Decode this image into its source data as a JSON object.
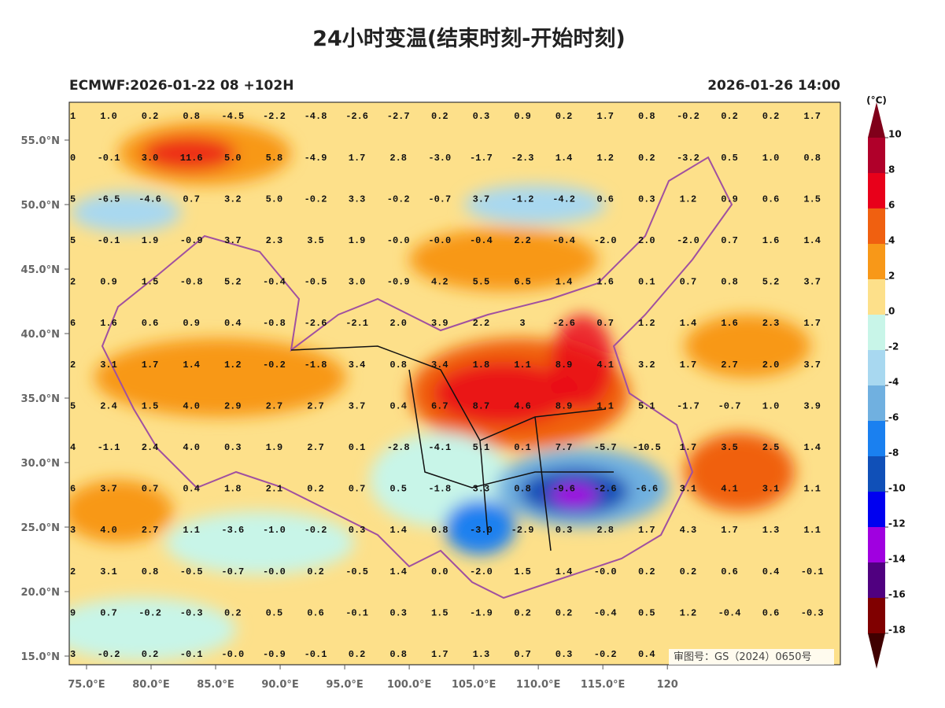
{
  "map": {
    "title": "24小时变温(结束时刻-开始时刻)",
    "source": "ECMWF:2026-01-22 08 +102H",
    "valid_time": "2026-01-26 14:00",
    "unit_label": "(°C)",
    "review_number": "审图号：GS（2024）0650号",
    "xlim": [
      73.66,
      133.4
    ],
    "ylim": [
      14.33,
      57.93
    ],
    "xticks": [
      {
        "value": 75,
        "label": "75.0°E"
      },
      {
        "value": 80,
        "label": "80.0°E"
      },
      {
        "value": 85,
        "label": "85.0°E"
      },
      {
        "value": 90,
        "label": "90.0°E"
      },
      {
        "value": 95,
        "label": "95.0°E"
      },
      {
        "value": 100,
        "label": "100.0°E"
      },
      {
        "value": 105,
        "label": "105.0°E"
      },
      {
        "value": 110,
        "label": "110.0°E"
      },
      {
        "value": 115,
        "label": "115.0°E"
      },
      {
        "value": 120,
        "label": "120"
      }
    ],
    "yticks": [
      {
        "value": 15,
        "label": "15.0°N"
      },
      {
        "value": 20,
        "label": "20.0°N"
      },
      {
        "value": 25,
        "label": "25.0°N"
      },
      {
        "value": 30,
        "label": "30.0°N"
      },
      {
        "value": 35,
        "label": "35.0°N"
      },
      {
        "value": 40,
        "label": "40.0°N"
      },
      {
        "value": 45,
        "label": "45.0°N"
      },
      {
        "value": 50,
        "label": "50.0°N"
      },
      {
        "value": 55,
        "label": "55.0°N"
      }
    ],
    "colorbar": {
      "levels": [
        10,
        8,
        6,
        4,
        2,
        0,
        -2,
        -4,
        -6,
        -8,
        -10,
        -12,
        -14,
        -16,
        -18
      ],
      "colors": [
        "#b0002a",
        "#e8001a",
        "#f06010",
        "#f89818",
        "#fde08a",
        "#c8f5e8",
        "#a8d8f0",
        "#70b0e0",
        "#1a80f0",
        "#1050b8",
        "#0000f0",
        "#a000e0",
        "#500080",
        "#800000"
      ],
      "over_color": "#80001a",
      "under_color": "#400000"
    },
    "grid_values": [
      [
        "1",
        "1.0",
        "0.2",
        "0.8",
        "-4.5",
        "-2.2",
        "-4.8",
        "-2.6",
        "-2.7",
        "0.2",
        "0.3",
        "0.9",
        "0.2",
        "1.7",
        "0.8",
        "-0.2",
        "0.2",
        "0.2",
        "1.7"
      ],
      [
        "0",
        "-0.1",
        "3.0",
        "11.6",
        "5.0",
        "5.8",
        "-4.9",
        "1.7",
        "2.8",
        "-3.0",
        "-1.7",
        "-2.3",
        "1.4",
        "1.2",
        "0.2",
        "-3.2",
        "0.5",
        "1.0",
        "0.8"
      ],
      [
        "5",
        "-6.5",
        "-4.6",
        "0.7",
        "3.2",
        "5.0",
        "-0.2",
        "3.3",
        "-0.2",
        "-0.7",
        "3.7",
        "-1.2",
        "-4.2",
        "0.6",
        "0.3",
        "1.2",
        "0.9",
        "0.6",
        "1.5"
      ],
      [
        "5",
        "-0.1",
        "1.9",
        "-0.9",
        "3.7",
        "2.3",
        "3.5",
        "1.9",
        "-0.0",
        "-0.0",
        "-0.4",
        "2.2",
        "-0.4",
        "-2.0",
        "2.0",
        "-2.0",
        "0.7",
        "1.6",
        "1.4"
      ],
      [
        "2",
        "0.9",
        "1.5",
        "-0.8",
        "5.2",
        "-0.4",
        "-0.5",
        "3.0",
        "-0.9",
        "4.2",
        "5.5",
        "6.5",
        "1.4",
        "1.6",
        "0.1",
        "0.7",
        "0.8",
        "5.2",
        "3.7"
      ],
      [
        "6",
        "1.6",
        "0.6",
        "0.9",
        "0.4",
        "-0.8",
        "-2.6",
        "-2.1",
        "2.0",
        "3.9",
        "2.2",
        "3",
        "-2.6",
        "0.7",
        "1.2",
        "1.4",
        "1.6",
        "2.3",
        "1.7"
      ],
      [
        "2",
        "3.1",
        "1.7",
        "1.4",
        "1.2",
        "-0.2",
        "-1.8",
        "3.4",
        "0.8",
        "3.4",
        "1.8",
        "1.1",
        "8.9",
        "4.1",
        "3.2",
        "1.7",
        "2.7",
        "2.0",
        "3.7"
      ],
      [
        "5",
        "2.4",
        "1.5",
        "4.0",
        "2.9",
        "2.7",
        "2.7",
        "3.7",
        "0.4",
        "6.7",
        "8.7",
        "4.6",
        "8.9",
        "1.1",
        "5.1",
        "-1.7",
        "-0.7",
        "1.0",
        "3.9"
      ],
      [
        "4",
        "-1.1",
        "2.4",
        "4.0",
        "0.3",
        "1.9",
        "2.7",
        "0.1",
        "-2.8",
        "-4.1",
        "5.1",
        "0.1",
        "7.7",
        "-5.7",
        "-10.5",
        "1.7",
        "3.5",
        "2.5",
        "1.4"
      ],
      [
        "6",
        "3.7",
        "0.7",
        "0.4",
        "1.8",
        "2.1",
        "0.2",
        "0.7",
        "0.5",
        "-1.8",
        "3.3",
        "0.8",
        "-9.6",
        "-2.6",
        "-6.6",
        "3.1",
        "4.1",
        "3.1",
        "1.1"
      ],
      [
        "3",
        "4.0",
        "2.7",
        "1.1",
        "-3.6",
        "-1.0",
        "-0.2",
        "0.3",
        "1.4",
        "0.8",
        "-3.0",
        "-2.9",
        "0.3",
        "2.8",
        "1.7",
        "4.3",
        "1.7",
        "1.3",
        "1.1"
      ],
      [
        "2",
        "3.1",
        "0.8",
        "-0.5",
        "-0.7",
        "-0.0",
        "0.2",
        "-0.5",
        "1.4",
        "0.0",
        "-2.0",
        "1.5",
        "1.4",
        "-0.0",
        "0.2",
        "0.2",
        "0.6",
        "0.4",
        "-0.1"
      ],
      [
        "9",
        "0.7",
        "-0.2",
        "-0.3",
        "0.2",
        "0.5",
        "0.6",
        "-0.1",
        "0.3",
        "1.5",
        "-1.9",
        "0.2",
        "0.2",
        "-0.4",
        "0.5",
        "1.2",
        "-0.4",
        "0.6",
        "-0.3"
      ],
      [
        "3",
        "-0.2",
        "0.2",
        "-0.1",
        "-0.0",
        "-0.9",
        "-0.1",
        "0.2",
        "0.8",
        "1.7",
        "1.3",
        "0.7",
        "0.3",
        "-0.2",
        "0.4"
      ]
    ]
  }
}
